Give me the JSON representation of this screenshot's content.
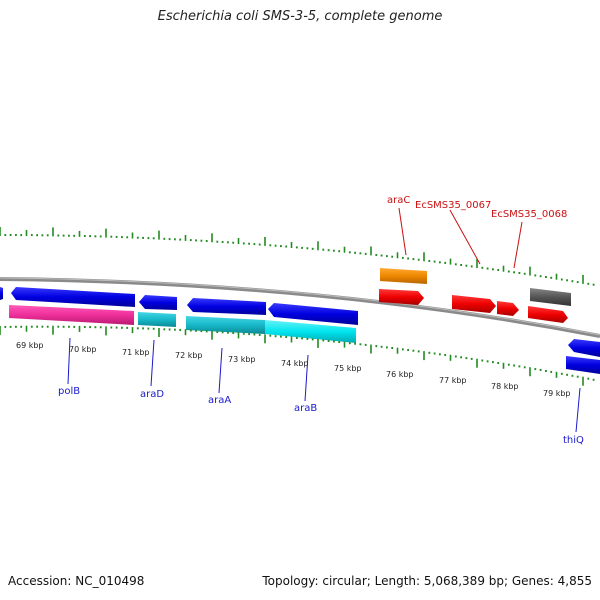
{
  "header": {
    "title": "Escherichia coli SMS-3-5, complete genome"
  },
  "footer": {
    "accession": "Accession: NC_010498",
    "topology": "Topology: circular; Length: 5,068,389 bp; Genes: 4,855"
  },
  "ruler": {
    "labels": [
      "69 kbp",
      "70 kbp",
      "71 kbp",
      "72 kbp",
      "73 kbp",
      "74 kbp",
      "75 kbp",
      "76 kbp",
      "77 kbp",
      "78 kbp",
      "79 kbp"
    ]
  },
  "genes": {
    "labels": [
      {
        "name": "polB",
        "color": "#1a1acc"
      },
      {
        "name": "araD",
        "color": "#1a1acc"
      },
      {
        "name": "araA",
        "color": "#1a1acc"
      },
      {
        "name": "araB",
        "color": "#1a1acc"
      },
      {
        "name": "thiQ",
        "color": "#1a1acc"
      },
      {
        "name": "araC",
        "color": "#cc1111"
      },
      {
        "name": "EcSMS35_0067",
        "color": "#cc1111"
      },
      {
        "name": "EcSMS35_0068",
        "color": "#cc1111"
      }
    ]
  },
  "colors": {
    "backbone": "#8a8a8a",
    "tick": "#228b22",
    "gene_forward": "#0000e0",
    "gene_reverse": "#ee0000",
    "cds_pink": "#ee2f9a",
    "cds_cyan": "#17b9c9",
    "cds_cyan_light": "#00e5ee",
    "orange": "#ee8800",
    "gray": "#555555"
  }
}
